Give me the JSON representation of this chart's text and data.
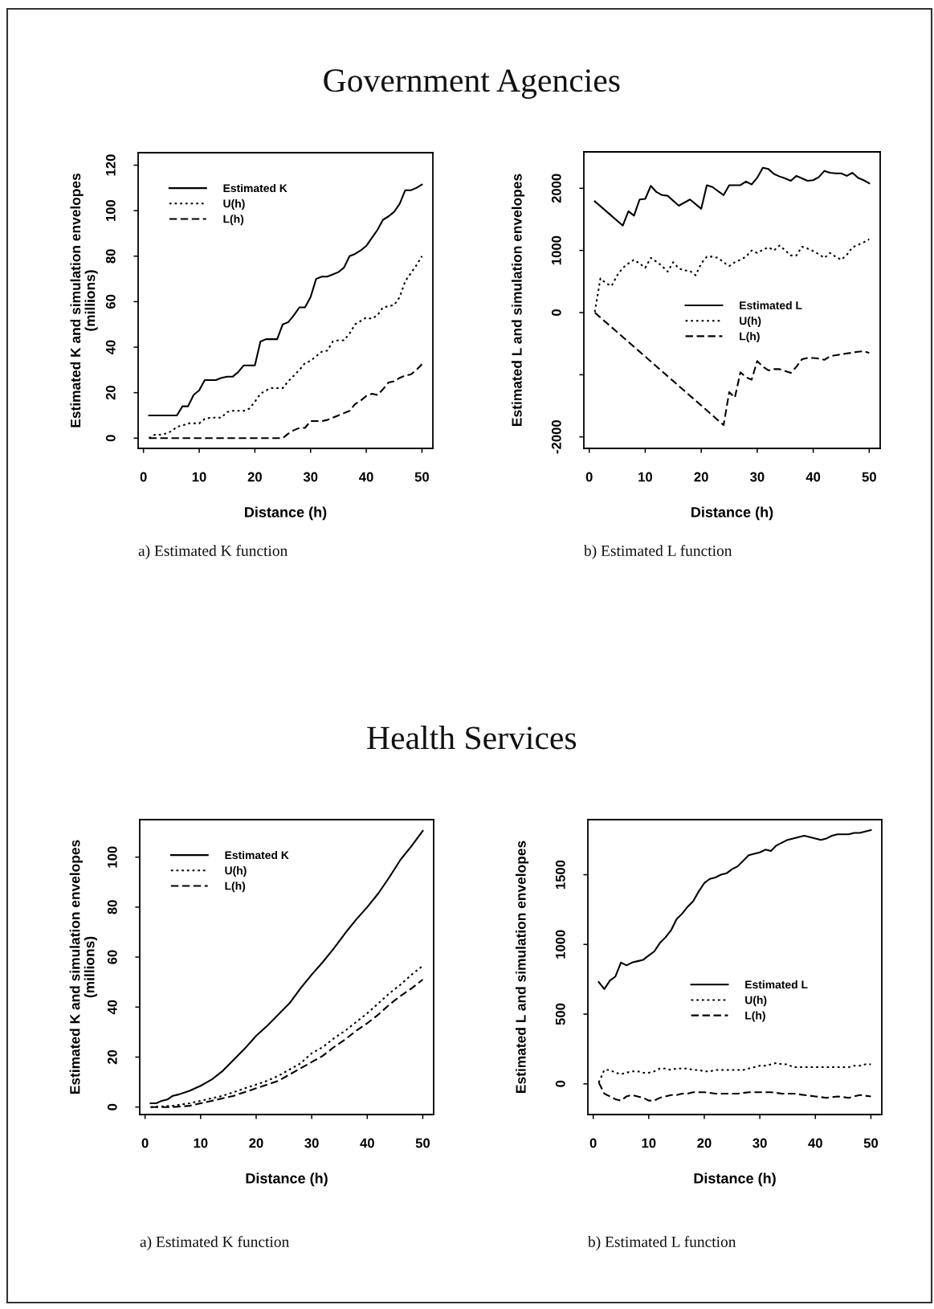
{
  "chart_data": [
    {
      "type": "line",
      "title": "Government Agencies",
      "subtitle": "a) Estimated K function",
      "xlabel": "Distance (h)",
      "ylabel": "Estimated K and simulation envelopes\n(millions)",
      "xlim": [
        -0.96,
        51.96
      ],
      "ylim": [
        -4.5,
        125.5
      ],
      "xticks": [
        0,
        10,
        20,
        30,
        40,
        50
      ],
      "yticks": [
        0,
        20,
        40,
        60,
        80,
        100,
        120
      ],
      "legend": "top left",
      "series": [
        {
          "name": "Estimated K",
          "color": "#000000",
          "line_style": "solid",
          "x": [
            1,
            6,
            7,
            8,
            9,
            10,
            11,
            13,
            14,
            15,
            16,
            17,
            18,
            20,
            21,
            22,
            24,
            25,
            26,
            27,
            28,
            29,
            30,
            31,
            32,
            33,
            34,
            35,
            36,
            37,
            38,
            39,
            40,
            41,
            42,
            43,
            44,
            45,
            46,
            47,
            48,
            49,
            50
          ],
          "values": [
            10,
            10,
            14,
            14,
            19,
            21,
            25.5,
            25.5,
            26.5,
            27,
            27,
            29,
            32,
            32,
            42.5,
            43.5,
            43.5,
            50,
            51,
            54,
            57.5,
            57.5,
            62,
            70,
            71,
            71,
            72,
            73,
            75,
            80,
            81,
            82.5,
            84.5,
            88,
            91.5,
            96,
            97.5,
            99.5,
            103,
            109,
            109,
            110,
            111.5
          ]
        },
        {
          "name": "U(h)",
          "color": "#000000",
          "line_style": "dotted",
          "x": [
            1,
            2,
            3,
            4,
            5,
            6,
            7,
            8,
            9,
            10,
            11,
            12,
            13,
            14,
            15,
            16,
            17,
            18,
            19,
            20,
            21,
            22,
            23,
            24,
            25,
            26,
            27,
            28,
            29,
            30,
            31,
            32,
            33,
            34,
            35,
            36,
            37,
            38,
            39,
            40,
            41,
            42,
            43,
            44,
            45,
            46,
            47,
            48,
            49,
            50
          ],
          "values": [
            0,
            1.5,
            1.5,
            2,
            3,
            5,
            5.5,
            6.5,
            6.5,
            6.5,
            8.5,
            9,
            9,
            9,
            11.5,
            12,
            12,
            12,
            13,
            16,
            19.5,
            21,
            22,
            22,
            22,
            25,
            27.5,
            30,
            33,
            34,
            36,
            38,
            38.5,
            42.5,
            43,
            43,
            46,
            50,
            51.5,
            53,
            52.5,
            54,
            57.5,
            58,
            58.5,
            62,
            69,
            72.5,
            76,
            80
          ]
        },
        {
          "name": "L(h)",
          "color": "#000000",
          "line_style": "dashed",
          "x": [
            1,
            25,
            26,
            27,
            28,
            29,
            30,
            31,
            32,
            33,
            34,
            35,
            36,
            37,
            38,
            39,
            40,
            41,
            42,
            43,
            44,
            45,
            46,
            47,
            48,
            49,
            50
          ],
          "values": [
            0,
            0,
            2,
            3.5,
            4.5,
            4.5,
            7.5,
            7.5,
            7.5,
            8,
            9,
            10,
            11,
            12,
            15,
            16.5,
            18.5,
            19.5,
            19,
            21.5,
            24.5,
            25,
            26.5,
            27.5,
            28,
            30,
            32.5
          ]
        }
      ]
    },
    {
      "type": "line",
      "subtitle": "b) Estimated L function",
      "xlabel": "Distance (h)",
      "ylabel": "Estimated L and simulation envelopes",
      "xlim": [
        -0.96,
        51.96
      ],
      "ylim": [
        -2185,
        2586
      ],
      "xticks": [
        0,
        10,
        20,
        30,
        40,
        50
      ],
      "yticks": [
        -2000,
        {
          "value": -1000,
          "label": null
        },
        0,
        1000,
        2000
      ],
      "legend": "center",
      "series": [
        {
          "name": "Estimated L",
          "color": "#000000",
          "line_style": "solid",
          "x": [
            1,
            6,
            7,
            8,
            9,
            10,
            11,
            12,
            13,
            14,
            16,
            18,
            20,
            21,
            22,
            24,
            25,
            27,
            28,
            29,
            30,
            31,
            32,
            33,
            34,
            35,
            36,
            37,
            38,
            39,
            40,
            41,
            42,
            43,
            44,
            45,
            46,
            47,
            48,
            49,
            50
          ],
          "values": [
            1790,
            1400,
            1630,
            1560,
            1820,
            1830,
            2040,
            1940,
            1890,
            1880,
            1720,
            1820,
            1670,
            2050,
            2020,
            1890,
            2050,
            2050,
            2110,
            2060,
            2170,
            2330,
            2310,
            2230,
            2190,
            2160,
            2120,
            2200,
            2160,
            2120,
            2130,
            2180,
            2280,
            2250,
            2240,
            2240,
            2200,
            2250,
            2170,
            2130,
            2080
          ]
        },
        {
          "name": "U(h)",
          "color": "#000000",
          "line_style": "dotted",
          "x": [
            1,
            2,
            3,
            4,
            5,
            6,
            7,
            8,
            9,
            10,
            11,
            12,
            13,
            14,
            15,
            16,
            17,
            18,
            19,
            20,
            21,
            22,
            23,
            24,
            25,
            26,
            27,
            28,
            29,
            30,
            31,
            32,
            33,
            34,
            35,
            36,
            37,
            38,
            39,
            40,
            41,
            42,
            43,
            44,
            45,
            46,
            47,
            48,
            49,
            50
          ],
          "values": [
            10,
            550,
            470,
            430,
            600,
            720,
            790,
            850,
            790,
            720,
            880,
            820,
            750,
            660,
            810,
            710,
            680,
            670,
            600,
            790,
            900,
            900,
            880,
            810,
            750,
            810,
            850,
            900,
            1000,
            960,
            1010,
            1050,
            1000,
            1080,
            1000,
            920,
            920,
            1060,
            1030,
            990,
            940,
            880,
            960,
            900,
            850,
            930,
            1050,
            1090,
            1130,
            1180
          ]
        },
        {
          "name": "L(h)",
          "color": "#000000",
          "line_style": "dashed",
          "x": [
            1,
            24,
            25,
            26,
            27,
            28,
            29,
            30,
            31,
            32,
            33,
            34,
            35,
            36,
            37,
            38,
            39,
            40,
            41,
            42,
            43,
            48,
            49,
            50
          ],
          "values": [
            0,
            -1810,
            -1280,
            -1370,
            -960,
            -1040,
            -1080,
            -780,
            -870,
            -930,
            -910,
            -910,
            -940,
            -970,
            -870,
            -750,
            -730,
            -730,
            -740,
            -760,
            -700,
            -630,
            -620,
            -650
          ]
        }
      ]
    },
    {
      "type": "line",
      "title": "Health Services",
      "subtitle": "a) Estimated K function",
      "xlabel": "Distance (h)",
      "ylabel": "Estimated K and simulation envelopes\n(millions)",
      "xlim": [
        -0.96,
        51.96
      ],
      "ylim": [
        -3,
        115
      ],
      "xticks": [
        0,
        10,
        20,
        30,
        40,
        50
      ],
      "yticks": [
        0,
        20,
        40,
        60,
        80,
        100
      ],
      "legend": "top left",
      "series": [
        {
          "name": "Estimated K",
          "color": "#000000",
          "line_style": "solid",
          "x": [
            1,
            2,
            3,
            4,
            5,
            6,
            8,
            10,
            12,
            14,
            16,
            18,
            20,
            22,
            24,
            26,
            28,
            30,
            32,
            34,
            36,
            38,
            40,
            42,
            44,
            46,
            48,
            50
          ],
          "values": [
            1.5,
            1.5,
            2.5,
            3,
            4.5,
            5,
            6.5,
            8.5,
            11,
            14.5,
            19,
            23.5,
            28.5,
            32.5,
            37,
            41.5,
            47.5,
            53,
            58,
            63.5,
            69.5,
            75,
            80,
            85.5,
            92,
            99,
            104.5,
            110.5
          ]
        },
        {
          "name": "U(h)",
          "color": "#000000",
          "line_style": "dotted",
          "x": [
            1,
            5,
            8,
            10,
            12,
            14,
            16,
            18,
            20,
            22,
            24,
            26,
            28,
            30,
            32,
            34,
            36,
            38,
            40,
            42,
            44,
            46,
            48,
            50
          ],
          "values": [
            0,
            0.5,
            1.5,
            2.5,
            3.5,
            4.5,
            6,
            7.5,
            9,
            10.5,
            12.5,
            15,
            17.5,
            21.5,
            24,
            27.5,
            30.5,
            34,
            37.5,
            41.5,
            45.5,
            49,
            53,
            56.5
          ]
        },
        {
          "name": "L(h)",
          "color": "#000000",
          "line_style": "dashed",
          "x": [
            1,
            5,
            8,
            10,
            12,
            14,
            16,
            18,
            20,
            22,
            24,
            26,
            28,
            30,
            32,
            34,
            36,
            38,
            40,
            42,
            44,
            46,
            48,
            50
          ],
          "values": [
            0,
            0,
            0.5,
            1.5,
            2.5,
            3.5,
            4.5,
            6,
            7.5,
            9,
            10.5,
            13,
            15.5,
            18,
            20.5,
            24,
            27,
            30.5,
            33.5,
            37,
            41,
            44.5,
            47.5,
            51
          ]
        }
      ]
    },
    {
      "type": "line",
      "subtitle": "b) Estimated L function",
      "xlabel": "Distance (h)",
      "ylabel": "Estimated L and simulation envelopes",
      "xlim": [
        -0.96,
        51.96
      ],
      "ylim": [
        -220,
        1895
      ],
      "xticks": [
        0,
        10,
        20,
        30,
        40,
        50
      ],
      "yticks": [
        0,
        500,
        1000,
        1500
      ],
      "legend": "center",
      "series": [
        {
          "name": "Estimated L",
          "color": "#000000",
          "line_style": "solid",
          "x": [
            1,
            2,
            3,
            4,
            5,
            6,
            7,
            8,
            9,
            10,
            11,
            12,
            13,
            14,
            15,
            16,
            17,
            18,
            19,
            20,
            21,
            22,
            23,
            24,
            25,
            26,
            27,
            28,
            29,
            30,
            31,
            32,
            33,
            34,
            35,
            36,
            37,
            38,
            39,
            40,
            41,
            42,
            43,
            44,
            45,
            46,
            47,
            48,
            49,
            50
          ],
          "values": [
            730,
            680,
            740,
            770,
            870,
            850,
            870,
            880,
            890,
            920,
            950,
            1010,
            1050,
            1100,
            1180,
            1220,
            1270,
            1310,
            1380,
            1440,
            1470,
            1480,
            1500,
            1510,
            1540,
            1560,
            1600,
            1640,
            1650,
            1660,
            1680,
            1670,
            1710,
            1730,
            1750,
            1760,
            1770,
            1780,
            1770,
            1760,
            1750,
            1760,
            1780,
            1790,
            1790,
            1790,
            1800,
            1800,
            1810,
            1820
          ]
        },
        {
          "name": "U(h)",
          "color": "#000000",
          "line_style": "dotted",
          "x": [
            1,
            2,
            3,
            4,
            5,
            6,
            7,
            8,
            9,
            10,
            11,
            12,
            13,
            14,
            15,
            16,
            17,
            18,
            19,
            20,
            21,
            22,
            23,
            24,
            25,
            26,
            27,
            28,
            29,
            30,
            31,
            32,
            33,
            34,
            35,
            36,
            37,
            38,
            39,
            40,
            41,
            42,
            43,
            44,
            45,
            46,
            47,
            48,
            49,
            50
          ],
          "values": [
            10,
            100,
            100,
            80,
            70,
            80,
            90,
            90,
            80,
            80,
            90,
            110,
            110,
            100,
            110,
            110,
            110,
            100,
            100,
            90,
            90,
            100,
            100,
            100,
            100,
            100,
            100,
            110,
            120,
            130,
            130,
            140,
            150,
            140,
            140,
            120,
            120,
            120,
            120,
            120,
            120,
            120,
            120,
            120,
            120,
            120,
            130,
            130,
            140,
            140
          ]
        },
        {
          "name": "L(h)",
          "color": "#000000",
          "line_style": "dashed",
          "x": [
            1,
            2,
            3,
            4,
            5,
            6,
            7,
            8,
            9,
            10,
            11,
            12,
            13,
            14,
            15,
            16,
            17,
            18,
            19,
            20,
            22,
            24,
            26,
            28,
            30,
            32,
            34,
            36,
            38,
            40,
            42,
            44,
            46,
            48,
            50
          ],
          "values": [
            10,
            -70,
            -90,
            -110,
            -120,
            -90,
            -80,
            -90,
            -100,
            -120,
            -120,
            -100,
            -90,
            -80,
            -80,
            -70,
            -70,
            -60,
            -60,
            -60,
            -70,
            -70,
            -70,
            -60,
            -60,
            -60,
            -70,
            -70,
            -80,
            -90,
            -100,
            -90,
            -100,
            -80,
            -90
          ]
        }
      ]
    }
  ]
}
